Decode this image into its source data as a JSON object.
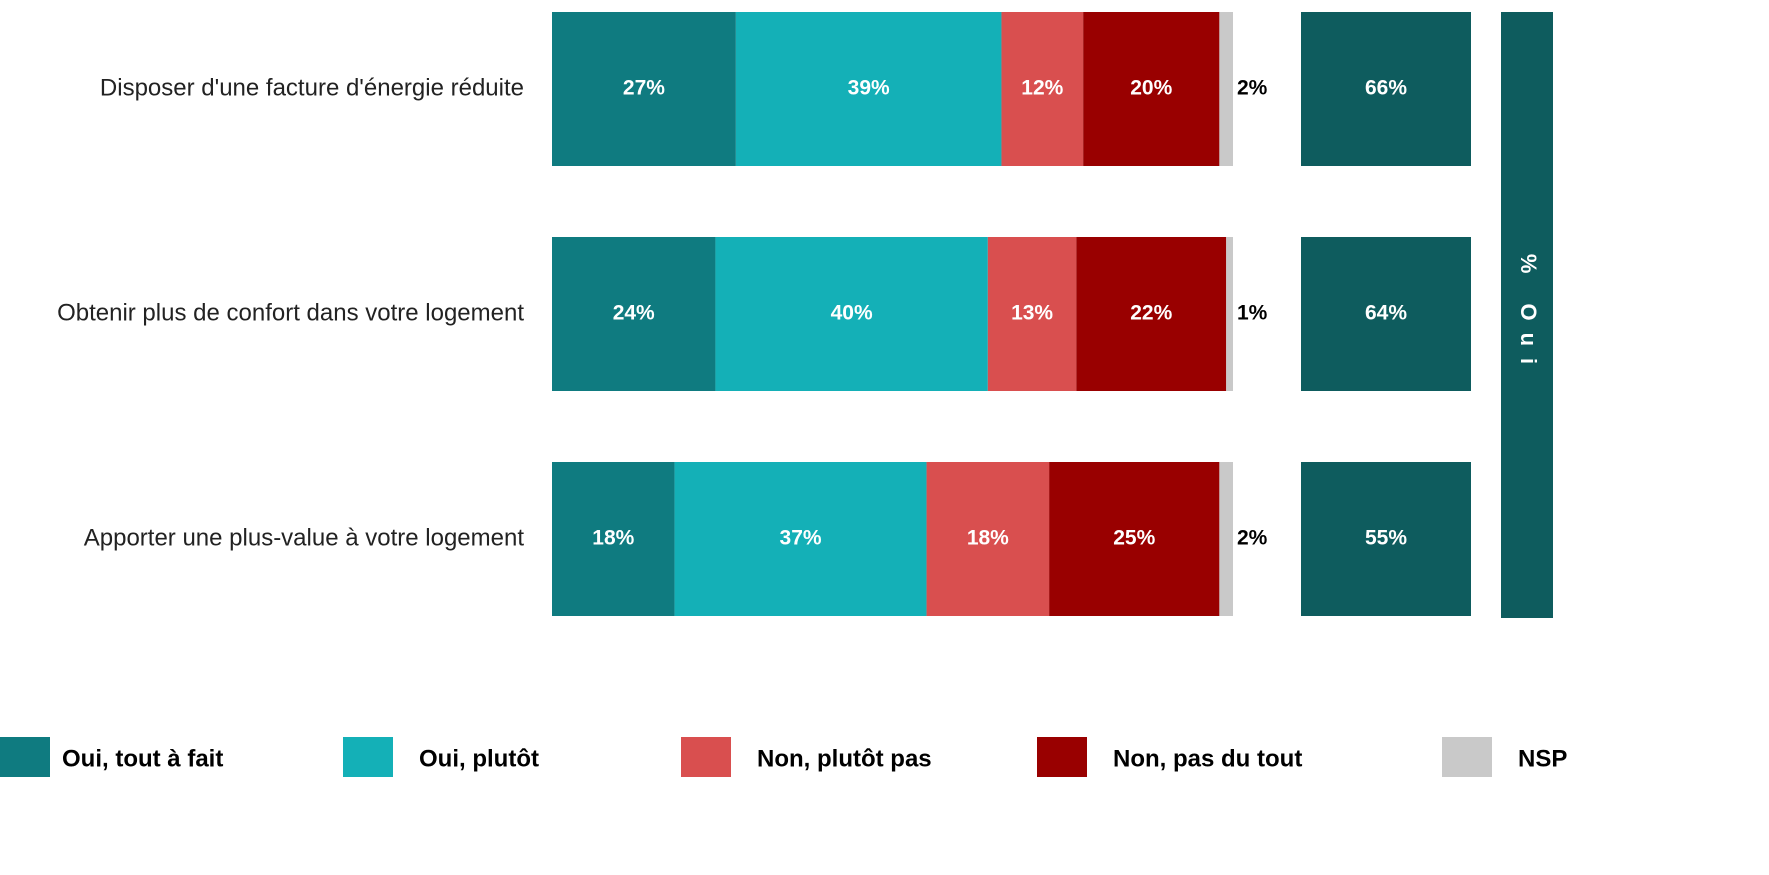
{
  "chart_data": {
    "type": "stacked-bar-horizontal",
    "categories": [
      "Disposer d'une facture d'énergie réduite",
      "Obtenir plus de confort dans votre logement",
      "Apporter une plus-value à votre logement"
    ],
    "xlim": [
      0,
      100
    ],
    "series": [
      {
        "name": "Oui, tout à fait",
        "color": "#0f7b80",
        "values": [
          27,
          24,
          18
        ],
        "value_labels": [
          "27%",
          "24%",
          "18%"
        ]
      },
      {
        "name": "Oui, plutôt",
        "color": "#14b0b7",
        "values": [
          39,
          40,
          37
        ],
        "value_labels": [
          "39%",
          "40%",
          "37%"
        ]
      },
      {
        "name": "Non, plutôt pas",
        "color": "#d94f4f",
        "values": [
          12,
          13,
          18
        ],
        "value_labels": [
          "12%",
          "13%",
          "18%"
        ]
      },
      {
        "name": "Non, pas du tout",
        "color": "#990000",
        "values": [
          20,
          22,
          25
        ],
        "value_labels": [
          "20%",
          "22%",
          "25%"
        ]
      },
      {
        "name": "NSP",
        "color": "#c9c9c9",
        "values": [
          2,
          1,
          2
        ],
        "value_labels": [
          "2%",
          "1%",
          "2%"
        ]
      }
    ],
    "totals": {
      "name": "% Oui",
      "color": "#0e5c5e",
      "values": [
        66,
        64,
        55
      ],
      "value_labels": [
        "66%",
        "64%",
        "55%"
      ]
    }
  }
}
